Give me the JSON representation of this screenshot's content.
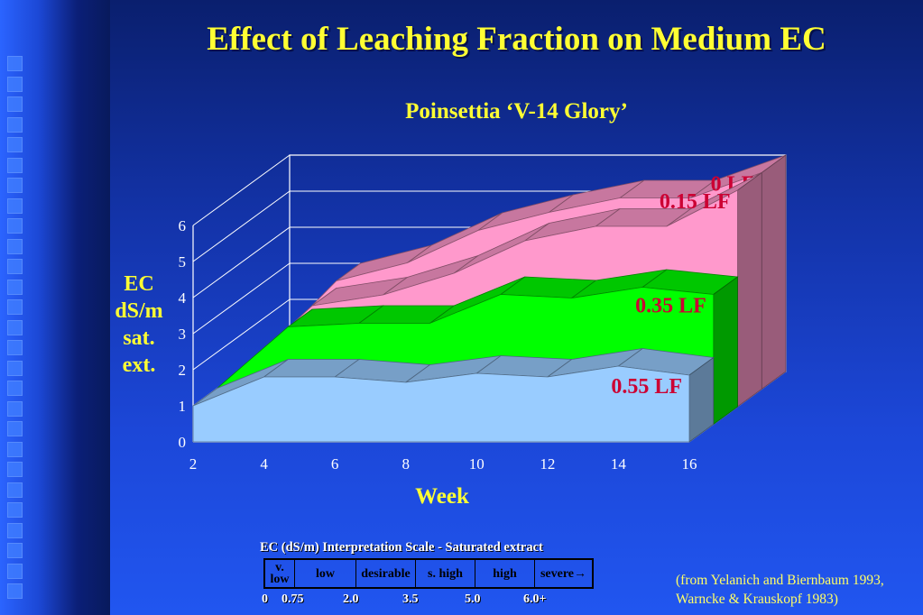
{
  "title": "Effect of Leaching Fraction on Medium EC",
  "subtitle": "Poinsettia ‘V-14 Glory’",
  "chart_data": {
    "type": "area",
    "style": "3d-stacked-ribbons",
    "x": [
      2,
      4,
      6,
      8,
      10,
      12,
      14,
      16
    ],
    "xlim": [
      2,
      16
    ],
    "ylim": [
      0,
      6
    ],
    "xticks": [
      "2",
      "4",
      "6",
      "8",
      "10",
      "12",
      "14",
      "16"
    ],
    "yticks": [
      "0",
      "1",
      "2",
      "3",
      "4",
      "5",
      "6"
    ],
    "xlabel": "Week",
    "ylabel_lines": [
      "EC",
      "dS/m",
      "sat.",
      "ext."
    ],
    "grid": true,
    "series": [
      {
        "name": "0 LF",
        "color": "#ff99cc",
        "values": [
          1.0,
          3.0,
          3.5,
          4.4,
          4.9,
          5.3,
          5.3,
          6.0
        ]
      },
      {
        "name": "0.15 LF",
        "color": "#ff99cc",
        "values": [
          1.0,
          2.8,
          3.1,
          3.7,
          4.6,
          5.0,
          5.0,
          6.0
        ]
      },
      {
        "name": "0.35 LF",
        "color": "#00ff00",
        "values": [
          1.0,
          2.7,
          2.8,
          2.8,
          3.6,
          3.5,
          3.8,
          3.6
        ]
      },
      {
        "name": "0.55 LF",
        "color": "#99ccff",
        "values": [
          1.0,
          1.8,
          1.8,
          1.65,
          1.9,
          1.8,
          2.1,
          1.85
        ]
      }
    ],
    "label_color": "#cc0033"
  },
  "scale": {
    "title": "EC (dS/m) Interpretation Scale - Saturated extract",
    "categories": [
      {
        "label": "v. low",
        "color": "#99ccff"
      },
      {
        "label": "low",
        "color": "#99ccff"
      },
      {
        "label": "desirable",
        "color": "#00ff00"
      },
      {
        "label": "s. high",
        "color": "#ffcc00"
      },
      {
        "label": "high",
        "color": "#ff8080"
      },
      {
        "label": "severe",
        "color": "#ff0000"
      }
    ],
    "ticks": [
      "0",
      "0.75",
      "2.0",
      "3.5",
      "5.0",
      "6.0+"
    ]
  },
  "source_line1": "(from Yelanich and Biernbaum 1993,",
  "source_line2": "Warncke & Krauskopf 1983)"
}
